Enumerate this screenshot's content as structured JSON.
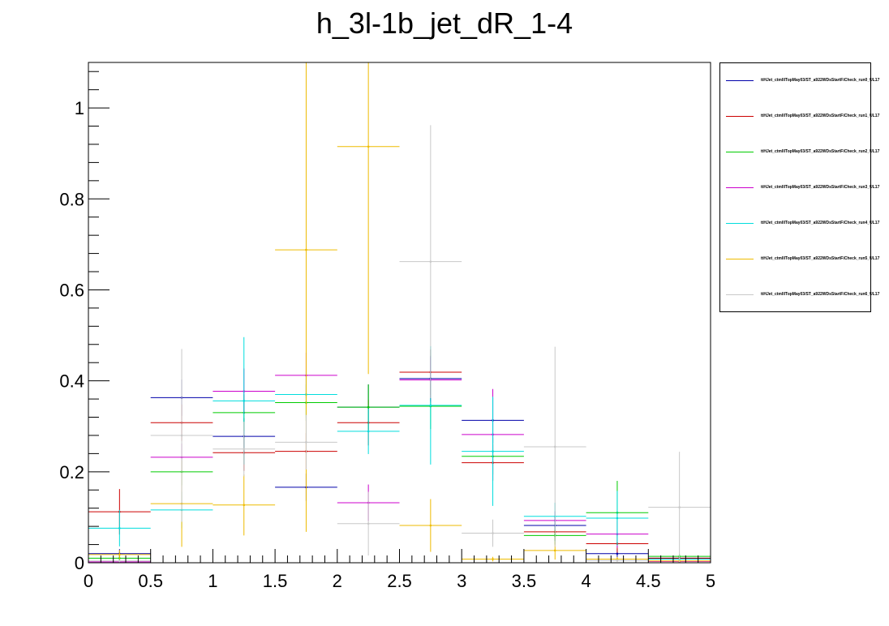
{
  "chart_data": {
    "type": "line",
    "title": "h_3l-1b_jet_dR_1-4",
    "xlabel": "",
    "ylabel": "",
    "xlim": [
      0,
      5
    ],
    "ylim": [
      0,
      1.1
    ],
    "x_ticks": [
      "0",
      "0.5",
      "1",
      "1.5",
      "2",
      "2.5",
      "3",
      "3.5",
      "4",
      "4.5",
      "5"
    ],
    "y_ticks": [
      "0",
      "0.2",
      "0.4",
      "0.6",
      "0.8",
      "1"
    ],
    "legend_position": "top-right-outside",
    "bin_edges": [
      0,
      0.5,
      1,
      1.5,
      2,
      2.5,
      3,
      3.5,
      4,
      4.5,
      5
    ],
    "series": [
      {
        "name": "ttHJet_ctmlllTopMay03/ST_a922WDsStartFiCheck_run0_UL17",
        "color": "#0000aa",
        "values": [
          0.02,
          0.363,
          0.278,
          0.166,
          0.342,
          0.405,
          0.313,
          0.082,
          0.02,
          0.01
        ],
        "errors": [
          0.01,
          0.04,
          0.04,
          0.03,
          0.05,
          0.05,
          0.05,
          0.02,
          0.01,
          0.005
        ]
      },
      {
        "name": "ttHJet_ctmlllTopMay03/ST_a922WDsStartFiCheck_run1_UL17",
        "color": "#cc0000",
        "values": [
          0.112,
          0.308,
          0.242,
          0.245,
          0.308,
          0.419,
          0.22,
          0.068,
          0.042,
          0.01
        ],
        "errors": [
          0.05,
          0.04,
          0.04,
          0.04,
          0.05,
          0.05,
          0.04,
          0.02,
          0.02,
          0.005
        ]
      },
      {
        "name": "ttHJet_ctmlllTopMay03/ST_a922WDsStartFiCheck_run2_UL17",
        "color": "#00cc00",
        "values": [
          0.01,
          0.2,
          0.33,
          0.352,
          0.342,
          0.344,
          0.234,
          0.06,
          0.11,
          0.014
        ],
        "errors": [
          0.005,
          0.03,
          0.04,
          0.04,
          0.05,
          0.05,
          0.04,
          0.02,
          0.07,
          0.005
        ]
      },
      {
        "name": "ttHJet_ctmlllTopMay03/ST_a922WDsStartFiCheck_run3_UL17",
        "color": "#cc00cc",
        "values": [
          0.002,
          0.232,
          0.377,
          0.412,
          0.132,
          0.402,
          0.282,
          0.093,
          0.063,
          0.003
        ],
        "errors": [
          0.002,
          0.03,
          0.05,
          0.05,
          0.04,
          0.05,
          0.1,
          0.02,
          0.03,
          0.002
        ]
      },
      {
        "name": "ttHJet_ctmlllTopMay03/ST_a922WDsStartFiCheck_run4_UL17",
        "color": "#00dddd",
        "values": [
          0.076,
          0.116,
          0.356,
          0.37,
          0.289,
          0.346,
          0.245,
          0.102,
          0.098,
          0.008
        ],
        "errors": [
          0.04,
          0.04,
          0.14,
          0.05,
          0.05,
          0.13,
          0.12,
          0.03,
          0.06,
          0.004
        ]
      },
      {
        "name": "ttHJet_ctmlllTopMay03/ST_a922WDsStartFiCheck_run5_UL17",
        "color": "#eebb00",
        "values": [
          0.018,
          0.13,
          0.127,
          0.688,
          0.915,
          0.082,
          0.008,
          0.027,
          0.008,
          0.004
        ],
        "errors": [
          0.01,
          0.095,
          0.067,
          0.62,
          0.5,
          0.058,
          0.005,
          0.02,
          0.005,
          0.003
        ]
      },
      {
        "name": "ttHJet_ctmlllTopMay03/ST_a922WDsStartFiCheck_run6_UL17",
        "color": "#c8c8c8",
        "values": [
          0.004,
          0.28,
          0.25,
          0.265,
          0.086,
          0.662,
          0.065,
          0.255,
          0.005,
          0.122
        ],
        "errors": [
          0.003,
          0.19,
          0.06,
          0.06,
          0.07,
          0.3,
          0.03,
          0.22,
          0.003,
          0.122
        ]
      }
    ]
  }
}
